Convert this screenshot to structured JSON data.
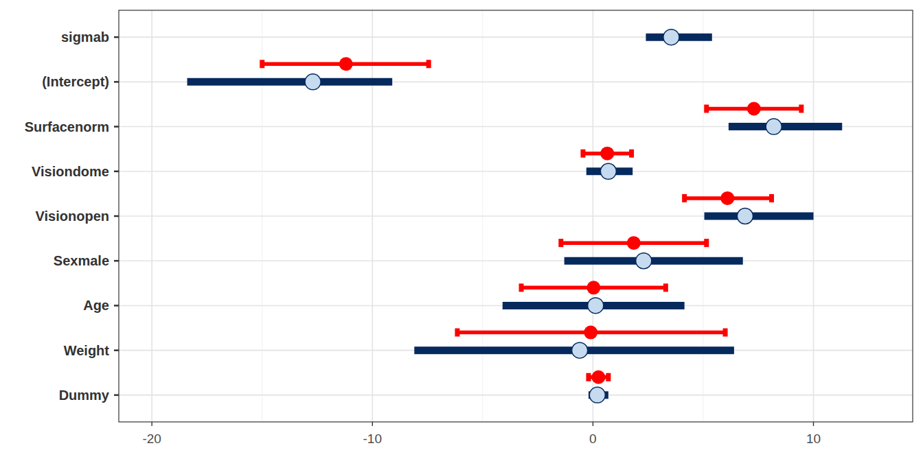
{
  "chart_data": {
    "type": "forest",
    "orientation": "horizontal",
    "categories": [
      "sigmab",
      "(Intercept)",
      "Surfacenorm",
      "Visiondome",
      "Visionopen",
      "Sexmale",
      "Age",
      "Weight",
      "Dummy"
    ],
    "xlim": [
      -21.5,
      14.5
    ],
    "xticks": [
      -20,
      -10,
      0,
      10
    ],
    "grid": true,
    "series": [
      {
        "color": "#ff0000",
        "marker": "circle",
        "line_style": "capped",
        "values": [
          null,
          -11.2,
          7.3,
          0.65,
          6.1,
          1.85,
          0.03,
          -0.1,
          0.25
        ],
        "lower": [
          null,
          -15.0,
          5.15,
          -0.45,
          4.15,
          -1.45,
          -3.25,
          -6.15,
          -0.2
        ],
        "upper": [
          null,
          -7.45,
          9.45,
          1.75,
          8.1,
          5.15,
          3.3,
          6.0,
          0.7
        ]
      },
      {
        "color": "#062a5e",
        "marker": "ring",
        "line_style": "thick",
        "values": [
          3.55,
          -12.7,
          8.2,
          0.7,
          6.9,
          2.3,
          0.12,
          -0.6,
          0.2
        ],
        "lower": [
          2.4,
          -18.4,
          6.15,
          -0.3,
          5.05,
          -1.3,
          -4.1,
          -8.1,
          -0.2
        ],
        "upper": [
          5.4,
          -9.1,
          11.3,
          1.8,
          10.0,
          6.8,
          4.15,
          6.4,
          0.7
        ]
      }
    ]
  }
}
